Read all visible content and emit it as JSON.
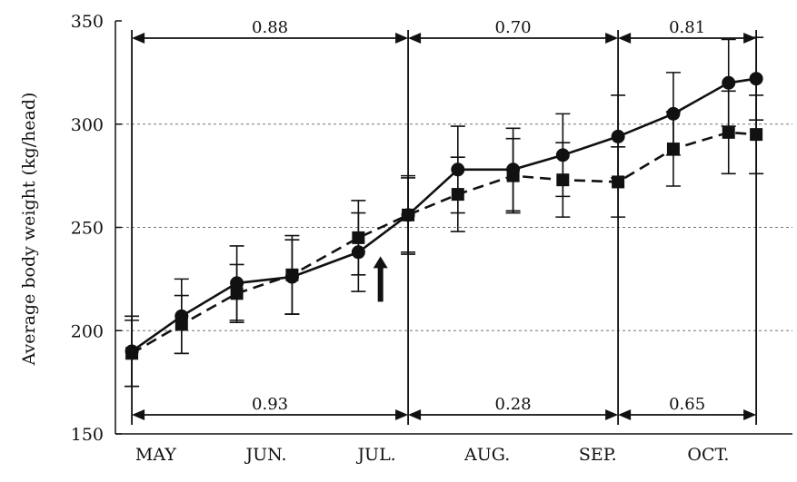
{
  "chart_data": {
    "type": "line",
    "ylabel": "Average body weight (kg/head)",
    "xlabel": "",
    "ylim": [
      150,
      350
    ],
    "yticks": [
      150,
      200,
      250,
      300,
      350
    ],
    "ytick_labels": [
      "150",
      "200",
      "250",
      "300",
      "350"
    ],
    "grid_y": [
      200,
      250,
      300
    ],
    "month_labels": [
      "MAY",
      "JUN.",
      "JUL.",
      "AUG.",
      "SEP.",
      "OCT."
    ],
    "series": [
      {
        "marker": "circle",
        "line": "solid",
        "points": [
          {
            "t": 0.1,
            "y": 190,
            "err": 17
          },
          {
            "t": 1.0,
            "y": 207,
            "err": 18
          },
          {
            "t": 2.0,
            "y": 223,
            "err": 18
          },
          {
            "t": 3.0,
            "y": 226,
            "err": 18
          },
          {
            "t": 4.2,
            "y": 238,
            "err": 19
          },
          {
            "t": 5.1,
            "y": 256,
            "err": 19
          },
          {
            "t": 6.0,
            "y": 278,
            "err": 21
          },
          {
            "t": 7.0,
            "y": 278,
            "err": 20
          },
          {
            "t": 7.9,
            "y": 285,
            "err": 20
          },
          {
            "t": 8.9,
            "y": 294,
            "err": 20
          },
          {
            "t": 9.9,
            "y": 305,
            "err": 20
          },
          {
            "t": 10.9,
            "y": 320,
            "err": 21
          },
          {
            "t": 11.4,
            "y": 322,
            "err": 20
          }
        ]
      },
      {
        "marker": "square",
        "line": "dashed",
        "points": [
          {
            "t": 0.1,
            "y": 189,
            "err": 16
          },
          {
            "t": 1.0,
            "y": 203,
            "err": 14
          },
          {
            "t": 2.0,
            "y": 218,
            "err": 14
          },
          {
            "t": 3.0,
            "y": 227,
            "err": 19
          },
          {
            "t": 4.2,
            "y": 245,
            "err": 18
          },
          {
            "t": 5.1,
            "y": 256,
            "err": 18
          },
          {
            "t": 6.0,
            "y": 266,
            "err": 18
          },
          {
            "t": 7.0,
            "y": 275,
            "err": 18
          },
          {
            "t": 7.9,
            "y": 273,
            "err": 18
          },
          {
            "t": 8.9,
            "y": 272,
            "err": 17
          },
          {
            "t": 9.9,
            "y": 288,
            "err": 18
          },
          {
            "t": 10.9,
            "y": 296,
            "err": 20
          },
          {
            "t": 11.4,
            "y": 295,
            "err": 19
          }
        ]
      }
    ],
    "period_boundaries": [
      0.1,
      5.1,
      8.9,
      11.4
    ],
    "annotations_top": [
      {
        "from": 0.1,
        "to": 5.1,
        "label": "0.88"
      },
      {
        "from": 5.1,
        "to": 8.9,
        "label": "0.70"
      },
      {
        "from": 8.9,
        "to": 11.4,
        "label": "0.81"
      }
    ],
    "annotations_bottom": [
      {
        "from": 0.1,
        "to": 5.1,
        "label": "0.93"
      },
      {
        "from": 5.1,
        "to": 8.9,
        "label": "0.28"
      },
      {
        "from": 8.9,
        "to": 11.4,
        "label": "0.65"
      }
    ],
    "arrow_marker": {
      "t": 4.6,
      "y_from": 214,
      "y_to": 236
    }
  }
}
